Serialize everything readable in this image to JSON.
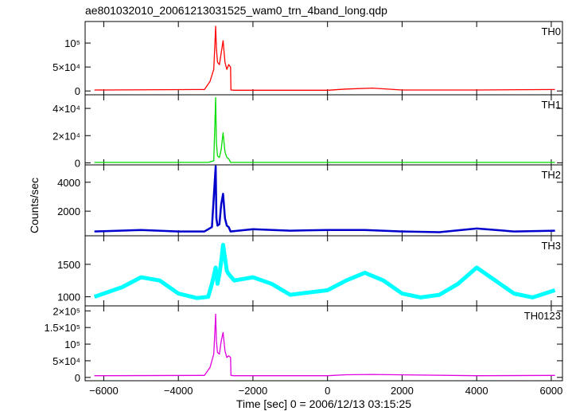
{
  "title": "ae801032010_20061213031525_wam0_trn_4band_long.qdp",
  "chart_data": {
    "type": "line",
    "title": "ae801032010_20061213031525_wam0_trn_4band_long.qdp",
    "xlabel": "Time [sec] 0 = 2006/12/13 03:15:25",
    "ylabel": "Counts/sec",
    "xlim": [
      -6500,
      6300
    ],
    "x_ticks": [
      -6000,
      -4000,
      -2000,
      0,
      2000,
      4000,
      6000
    ],
    "x_tick_labels": [
      "−6000",
      "−4000",
      "−2000",
      "0",
      "2000",
      "4000",
      "6000"
    ],
    "grid": false,
    "panels": [
      {
        "name": "TH0",
        "color": "#ff0000",
        "ylim": [
          -8000,
          145000
        ],
        "y_ticks": [
          0,
          50000,
          100000
        ],
        "y_tick_labels": [
          "0",
          "5×10⁴",
          "10⁵"
        ],
        "x": [
          -6250,
          -3300,
          -3150,
          -3050,
          -3000,
          -2980,
          -2950,
          -2900,
          -2850,
          -2800,
          -2750,
          -2700,
          -2650,
          -2600,
          -2590,
          -2500,
          0,
          500,
          1200,
          2000,
          4000,
          6100
        ],
        "y": [
          2000,
          3000,
          20000,
          45000,
          135000,
          90000,
          60000,
          55000,
          80000,
          105000,
          60000,
          45000,
          55000,
          50000,
          2000,
          1500,
          1500,
          4000,
          6000,
          2000,
          2000,
          3000
        ]
      },
      {
        "name": "TH1",
        "color": "#00dd00",
        "ylim": [
          -1500,
          50000
        ],
        "y_ticks": [
          0,
          20000,
          40000
        ],
        "y_tick_labels": [
          "0",
          "2×10⁴",
          "4×10⁴"
        ],
        "x": [
          -6250,
          -3200,
          -3050,
          -3000,
          -2980,
          -2950,
          -2900,
          -2850,
          -2800,
          -2750,
          -2700,
          -2650,
          -2600,
          0,
          6100
        ],
        "y": [
          300,
          300,
          1500,
          48000,
          15000,
          5000,
          4000,
          10000,
          22000,
          8000,
          4000,
          3000,
          300,
          300,
          300
        ]
      },
      {
        "name": "TH2",
        "color": "#0000cc",
        "ylim": [
          300,
          5200
        ],
        "y_ticks": [
          2000,
          4000
        ],
        "y_tick_labels": [
          "2000",
          "4000"
        ],
        "x": [
          -6250,
          -5000,
          -4000,
          -3300,
          -3100,
          -3000,
          -2980,
          -2950,
          -2900,
          -2850,
          -2800,
          -2750,
          -2700,
          -2650,
          -2600,
          -2000,
          -1000,
          0,
          1000,
          2000,
          3000,
          4000,
          5000,
          6100
        ],
        "y": [
          600,
          700,
          600,
          600,
          900,
          5100,
          1500,
          1000,
          1100,
          2500,
          3200,
          1500,
          1000,
          900,
          600,
          750,
          650,
          700,
          700,
          600,
          550,
          800,
          600,
          650
        ]
      },
      {
        "name": "TH3",
        "color": "#00ffff",
        "ylim": [
          860,
          1940
        ],
        "y_ticks": [
          1000,
          1500
        ],
        "y_tick_labels": [
          "1000",
          "1500"
        ],
        "x": [
          -6250,
          -5500,
          -5000,
          -4500,
          -4000,
          -3500,
          -3200,
          -3100,
          -3000,
          -2950,
          -2900,
          -2850,
          -2800,
          -2750,
          -2700,
          -2650,
          -2500,
          -2000,
          -1500,
          -1000,
          0,
          500,
          1000,
          1500,
          2000,
          2500,
          3000,
          3500,
          4000,
          4500,
          5000,
          5500,
          6100
        ],
        "y": [
          1000,
          1150,
          1300,
          1250,
          1050,
          980,
          1000,
          1200,
          1450,
          1200,
          1350,
          1550,
          1800,
          1600,
          1400,
          1350,
          1250,
          1300,
          1200,
          1030,
          1100,
          1250,
          1370,
          1250,
          1050,
          990,
          1030,
          1200,
          1450,
          1250,
          1050,
          990,
          1100
        ]
      },
      {
        "name": "TH0123",
        "color": "#e000e0",
        "ylim": [
          -10000,
          215000
        ],
        "y_ticks": [
          0,
          50000,
          100000,
          150000,
          200000
        ],
        "y_tick_labels": [
          "0",
          "5×10⁴",
          "10⁵",
          "1.5×10⁵",
          "2×10⁵"
        ],
        "x": [
          -6250,
          -3300,
          -3150,
          -3050,
          -3000,
          -2980,
          -2950,
          -2900,
          -2850,
          -2800,
          -2750,
          -2700,
          -2650,
          -2600,
          -2590,
          -2500,
          0,
          500,
          1200,
          4000,
          6100
        ],
        "y": [
          5000,
          6000,
          30000,
          70000,
          190000,
          110000,
          75000,
          70000,
          110000,
          135000,
          80000,
          60000,
          65000,
          60000,
          6000,
          5000,
          5000,
          8000,
          9000,
          5000,
          6000
        ]
      }
    ]
  }
}
